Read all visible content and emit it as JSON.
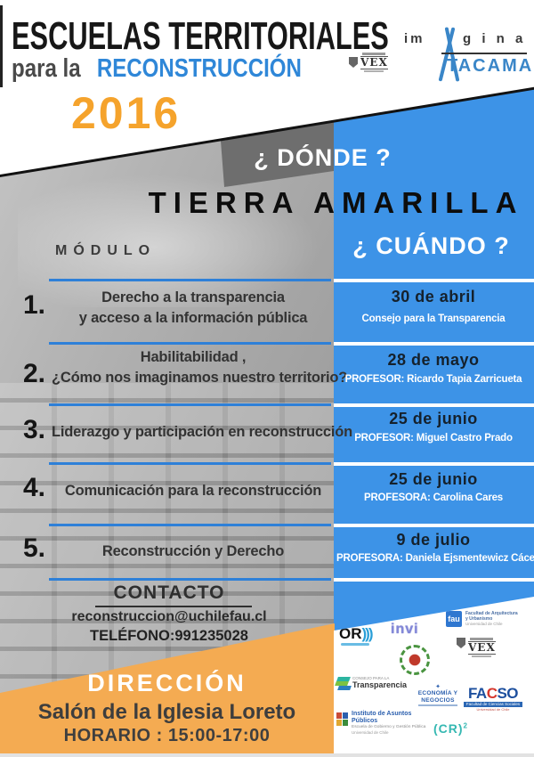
{
  "colors": {
    "blue": "#3d93e7",
    "blue_line": "#2e80d8",
    "blue_text": "#2f87d8",
    "orange": "#f5a32c",
    "orange_light": "#f4ab52"
  },
  "header": {
    "title": "ESCUELAS TERRITORIALES",
    "subtitle_prefix": "para la",
    "subtitle_highlight": "RECONSTRUCCIÓN",
    "year": "2016"
  },
  "brand": {
    "imagina_prefix": "im",
    "imagina_suffix": "g i n a",
    "atacama": "TACAMA",
    "vex": "VEX"
  },
  "where": {
    "label": "¿ DÓNDE ?",
    "value": "TIERRA AMARILLA"
  },
  "schedule": {
    "module_header": "MÓDULO",
    "when_header": "¿ CUÁNDO ?",
    "rows": [
      {
        "number": "1.",
        "title_line1": "Derecho a la transparencia",
        "title_line2": "y acceso a la información pública",
        "date": "30 de abril",
        "detail": "Consejo para la Transparencia"
      },
      {
        "number": "2.",
        "title_line1": "Habilitabilidad ,",
        "title_line2": "¿Cómo nos imaginamos nuestro territorio?",
        "date": "28 de mayo",
        "detail": "PROFESOR: Ricardo Tapia Zarricueta"
      },
      {
        "number": "3.",
        "title_line1": "Liderazgo y participación en reconstrucción",
        "title_line2": "",
        "date": "25 de junio",
        "detail": "PROFESOR: Miguel Castro Prado"
      },
      {
        "number": "4.",
        "title_line1": "Comunicación para la reconstrucción",
        "title_line2": "",
        "date": "25 de junio",
        "detail": "PROFESORA: Carolina Cares"
      },
      {
        "number": "5.",
        "title_line1": "Reconstrucción y Derecho",
        "title_line2": "",
        "date": "9 de julio",
        "detail": "PROFESORA: Daniela Ejsmentewicz Cáceres"
      }
    ]
  },
  "contact": {
    "label": "CONTACTO",
    "email": "reconstruccion@uchilefau.cl",
    "phone": "TELÉFONO:991235028"
  },
  "direction": {
    "label": "DIRECCIÓN",
    "venue": "Salón de la Iglesia Loreto",
    "hours": "HORARIO : 15:00-17:00"
  },
  "logos": {
    "or": {
      "text": "OR",
      "waves": ")))"
    },
    "invi": {
      "text": "invi"
    },
    "fau": {
      "abbr": "fau",
      "line1": "Facultad de Arquitectura",
      "line2": "y Urbanismo",
      "line3": "Universidad de Chile"
    },
    "transparencia": {
      "line1": "CONSEJO PARA LA",
      "line2": "Transparencia"
    },
    "economia": {
      "star": "✦",
      "line1": "ECONOMÍA Y",
      "line2": "NEGOCIOS"
    },
    "facso": {
      "part1": "FA",
      "part2": "C",
      "part3": "SO",
      "sub": "Facultad de Ciencias Sociales",
      "sub2": "Universidad de Chile"
    },
    "instituto": {
      "line1": "Instituto de Asuntos Públicos",
      "line2": "Escuela de Gobierno y Gestión Pública",
      "line3": "Universidad de Chile"
    },
    "cr2": {
      "text": "(CR)",
      "sup": "2"
    }
  }
}
